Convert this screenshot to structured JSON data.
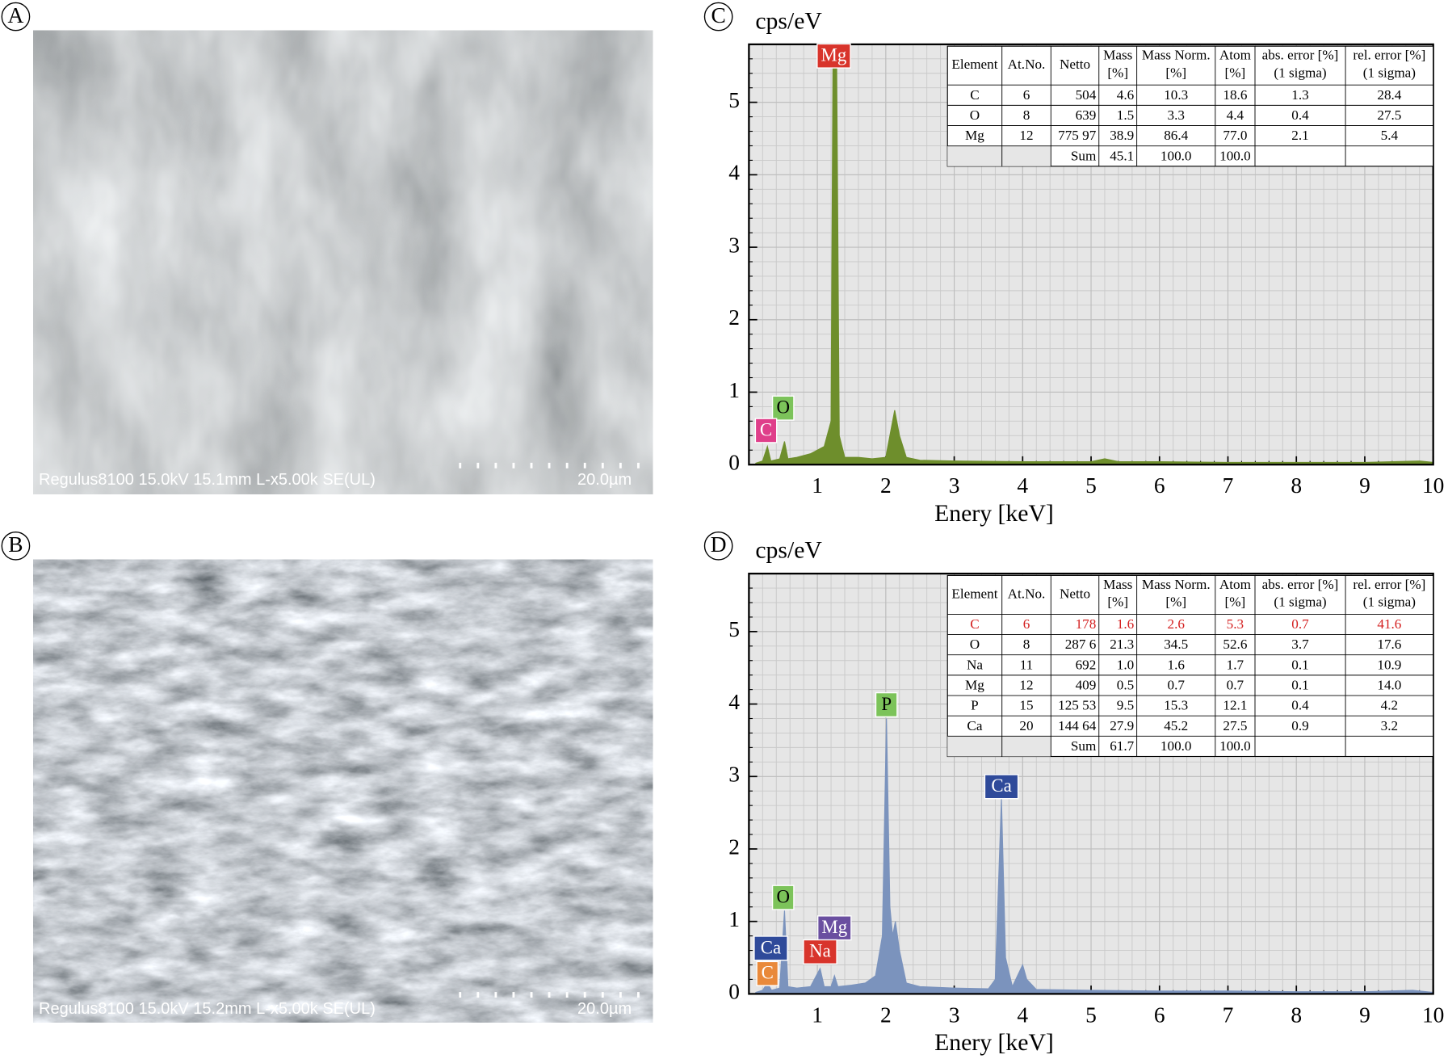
{
  "panels": [
    {
      "label": "A",
      "caption": "Regulus8100 15.0kV 15.1mm L-x5.00k SE(UL)",
      "scale": "20.0µm"
    },
    {
      "label": "B",
      "caption": "Regulus8100 15.0kV 15.2mm L-x5.00k SE(UL)",
      "scale": "20.0µm"
    }
  ],
  "chart_data": [
    {
      "type": "area",
      "label": "C",
      "ylabel": "cps/eV",
      "xlabel": "Enery [keV]",
      "color": "#6e8e2c",
      "x": [
        0.1,
        0.2,
        0.27,
        0.32,
        0.45,
        0.52,
        0.57,
        0.7,
        0.9,
        1.1,
        1.2,
        1.23,
        1.28,
        1.32,
        1.4,
        1.6,
        1.8,
        2.0,
        2.08,
        2.13,
        2.2,
        2.3,
        2.5,
        3,
        4,
        5,
        5.2,
        5.4,
        6,
        7,
        8,
        9,
        9.8,
        10
      ],
      "values": [
        0.02,
        0.05,
        0.25,
        0.05,
        0.08,
        0.32,
        0.08,
        0.1,
        0.15,
        0.25,
        0.6,
        5.8,
        5.8,
        0.4,
        0.1,
        0.1,
        0.08,
        0.1,
        0.5,
        0.75,
        0.4,
        0.1,
        0.06,
        0.05,
        0.04,
        0.04,
        0.08,
        0.04,
        0.04,
        0.03,
        0.03,
        0.03,
        0.05,
        0.03
      ],
      "xlim": [
        0,
        10
      ],
      "ylim": [
        0,
        5.8
      ],
      "xticks": [
        1,
        2,
        3,
        4,
        5,
        6,
        7,
        8,
        9,
        10
      ],
      "yticks": [
        0,
        1,
        2,
        3,
        4,
        5
      ],
      "grid": true,
      "minor_xstep": 0.2,
      "minor_ystep": 0.2,
      "peak_labels": [
        {
          "text": "Mg",
          "x": 1.24,
          "y": 5.64,
          "color": "#d8342b"
        },
        {
          "text": "O",
          "x": 0.5,
          "y": 0.78,
          "color": "#7cc35a"
        },
        {
          "text": "C",
          "x": 0.25,
          "y": 0.47,
          "color": "#df3f8a"
        }
      ],
      "table": {
        "header": [
          [
            "Element"
          ],
          [
            "At.No."
          ],
          [
            "Netto"
          ],
          [
            "Mass",
            "[%]"
          ],
          [
            "Mass Norm.",
            "[%]"
          ],
          [
            "Atom",
            "[%]"
          ],
          [
            "abs. error [%]",
            "(1 sigma)"
          ],
          [
            "rel. error [%]",
            "(1 sigma)"
          ]
        ],
        "rows": [
          {
            "cells": [
              "C",
              "6",
              "504",
              "4.6",
              "10.3",
              "18.6",
              "1.3",
              "28.4"
            ]
          },
          {
            "cells": [
              "O",
              "8",
              "639",
              "1.5",
              "3.3",
              "4.4",
              "0.4",
              "27.5"
            ]
          },
          {
            "cells": [
              "Mg",
              "12",
              "775 97",
              "38.9",
              "86.4",
              "77.0",
              "2.1",
              "5.4"
            ]
          }
        ],
        "sum": {
          "label": "Sum",
          "cells": [
            "45.1",
            "100.0",
            "100.0"
          ]
        }
      }
    },
    {
      "type": "area",
      "label": "D",
      "ylabel": "cps/eV",
      "xlabel": "Enery [keV]",
      "color": "#7b93bd",
      "x": [
        0.1,
        0.2,
        0.27,
        0.33,
        0.45,
        0.52,
        0.57,
        0.7,
        0.9,
        1.04,
        1.1,
        1.2,
        1.25,
        1.3,
        1.5,
        1.7,
        1.85,
        1.95,
        2.01,
        2.06,
        2.1,
        2.14,
        2.2,
        2.3,
        2.5,
        3,
        3.5,
        3.6,
        3.69,
        3.75,
        3.85,
        4.0,
        4.06,
        4.2,
        5,
        6,
        7,
        8,
        9,
        9.7,
        10
      ],
      "values": [
        0.02,
        0.05,
        0.15,
        0.05,
        0.08,
        1.15,
        0.1,
        0.08,
        0.1,
        0.35,
        0.1,
        0.1,
        0.25,
        0.1,
        0.12,
        0.15,
        0.25,
        0.8,
        3.8,
        1.2,
        0.8,
        1.0,
        0.6,
        0.15,
        0.1,
        0.08,
        0.07,
        0.2,
        2.7,
        0.5,
        0.1,
        0.4,
        0.2,
        0.06,
        0.05,
        0.04,
        0.04,
        0.03,
        0.03,
        0.05,
        0.02
      ],
      "xlim": [
        0,
        10
      ],
      "ylim": [
        0,
        5.8
      ],
      "xticks": [
        1,
        2,
        3,
        4,
        5,
        6,
        7,
        8,
        9,
        10
      ],
      "yticks": [
        0,
        1,
        2,
        3,
        4,
        5
      ],
      "grid": true,
      "minor_xstep": 0.2,
      "minor_ystep": 0.2,
      "peak_labels": [
        {
          "text": "P",
          "x": 2.01,
          "y": 3.99,
          "color": "#7cc35a"
        },
        {
          "text": "Ca",
          "x": 3.69,
          "y": 2.86,
          "color": "#2f4a9a"
        },
        {
          "text": "O",
          "x": 0.5,
          "y": 1.33,
          "color": "#7cc35a"
        },
        {
          "text": "Mg",
          "x": 1.25,
          "y": 0.91,
          "color": "#6a4fa0"
        },
        {
          "text": "Na",
          "x": 1.04,
          "y": 0.58,
          "color": "#d8342b"
        },
        {
          "text": "Ca",
          "x": 0.32,
          "y": 0.63,
          "color": "#2f4a9a"
        },
        {
          "text": "C",
          "x": 0.27,
          "y": 0.28,
          "color": "#e9893a"
        }
      ],
      "table": {
        "header": [
          [
            "Element"
          ],
          [
            "At.No."
          ],
          [
            "Netto"
          ],
          [
            "Mass",
            "[%]"
          ],
          [
            "Mass Norm.",
            "[%]"
          ],
          [
            "Atom",
            "[%]"
          ],
          [
            "abs. error [%]",
            "(1 sigma)"
          ],
          [
            "rel. error [%]",
            "(1 sigma)"
          ]
        ],
        "rows": [
          {
            "cells": [
              "C",
              "6",
              "178",
              "1.6",
              "2.6",
              "5.3",
              "0.7",
              "41.6"
            ],
            "color": "#d42020"
          },
          {
            "cells": [
              "O",
              "8",
              "287 6",
              "21.3",
              "34.5",
              "52.6",
              "3.7",
              "17.6"
            ]
          },
          {
            "cells": [
              "Na",
              "11",
              "692",
              "1.0",
              "1.6",
              "1.7",
              "0.1",
              "10.9"
            ]
          },
          {
            "cells": [
              "Mg",
              "12",
              "409",
              "0.5",
              "0.7",
              "0.7",
              "0.1",
              "14.0"
            ]
          },
          {
            "cells": [
              "P",
              "15",
              "125 53",
              "9.5",
              "15.3",
              "12.1",
              "0.4",
              "4.2"
            ]
          },
          {
            "cells": [
              "Ca",
              "20",
              "144 64",
              "27.9",
              "45.2",
              "27.5",
              "0.9",
              "3.2"
            ]
          }
        ],
        "sum": {
          "label": "Sum",
          "cells": [
            "61.7",
            "100.0",
            "100.0"
          ]
        }
      }
    }
  ]
}
